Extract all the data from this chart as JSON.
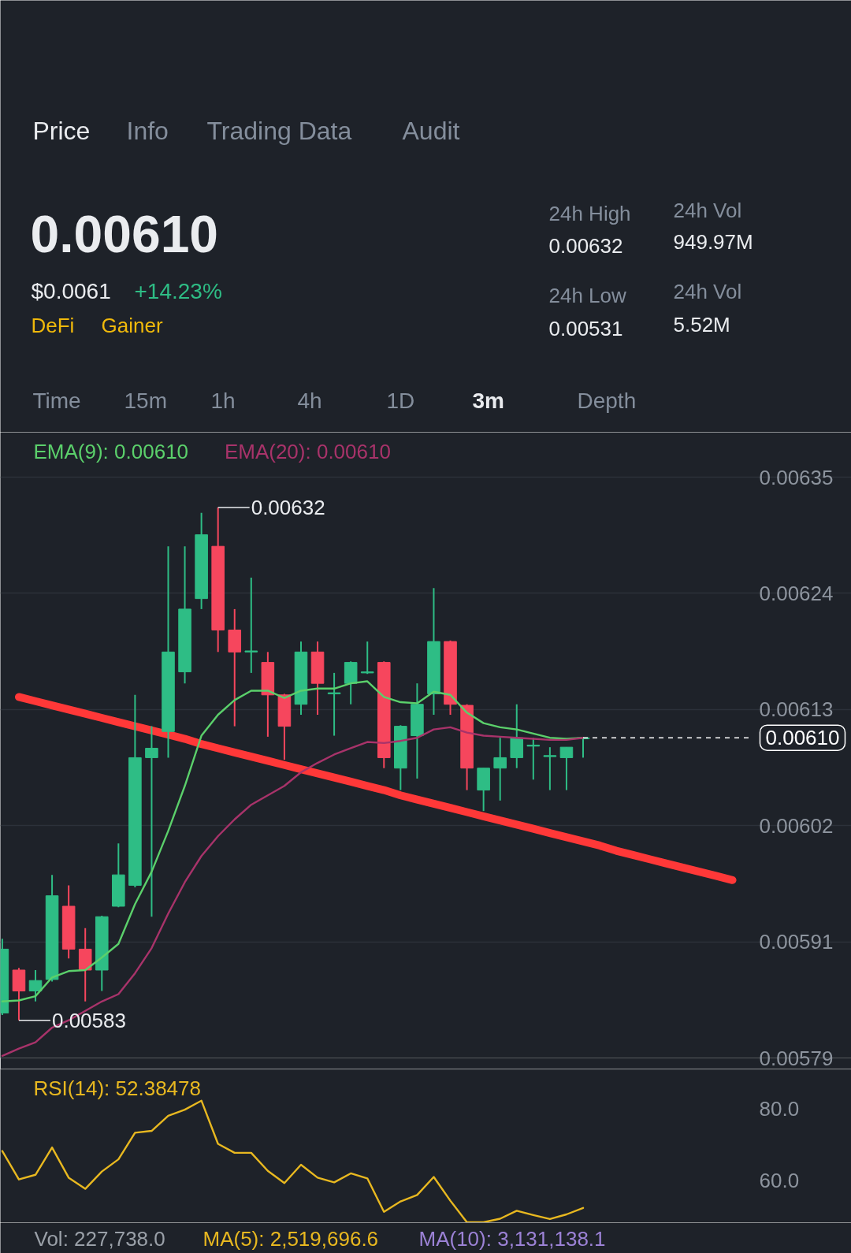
{
  "chart_data": [
    {
      "type": "other",
      "annotations": [
        "Price",
        "Info",
        "Trading Data",
        "Audit",
        "0.00610",
        "$0.0061",
        "+14.23%",
        "DeFi",
        "Gainer",
        "24h High",
        "0.00632",
        "24h Low",
        "0.00531",
        "24h Vol",
        "949.97M",
        "24h Vol",
        "5.52M",
        "Time",
        "15m",
        "1h",
        "4h",
        "1D",
        "3m",
        "Depth"
      ]
    },
    {
      "type": "candlestick",
      "categories": [
        null,
        null,
        null,
        null,
        null,
        null,
        null,
        null,
        null,
        null,
        null,
        null,
        null,
        null,
        null,
        null,
        null,
        null,
        null,
        null,
        null,
        null,
        null,
        null,
        null,
        null,
        null,
        null,
        null,
        null,
        null,
        null,
        null,
        null,
        null,
        null,
        null,
        null,
        null,
        null,
        null,
        null,
        null,
        null,
        null
      ],
      "ohlc": [
        [
          0.005837,
          0.005908,
          0.005835,
          0.005898
        ],
        [
          0.005878,
          0.00588,
          0.00583,
          0.005858
        ],
        [
          0.005858,
          0.005878,
          0.005848,
          0.005868
        ],
        [
          0.005869,
          0.005969,
          0.005867,
          0.005949
        ],
        [
          0.005939,
          0.005959,
          0.005889,
          0.005898
        ],
        [
          0.005898,
          0.005918,
          0.005848,
          0.005878
        ],
        [
          0.005878,
          0.00593,
          0.005858,
          0.005929
        ],
        [
          0.005939,
          0.005999,
          0.005938,
          0.005969
        ],
        [
          0.005959,
          0.006141,
          0.005957,
          0.006081
        ],
        [
          0.006081,
          0.006111,
          0.005929,
          0.00609
        ],
        [
          0.006106,
          0.006283,
          0.006081,
          0.006182
        ],
        [
          0.006163,
          0.006283,
          0.006152,
          0.006223
        ],
        [
          0.006233,
          0.006315,
          0.006223,
          0.006294
        ],
        [
          0.006283,
          0.00632,
          0.006182,
          0.006203
        ],
        [
          0.006203,
          0.006223,
          0.006111,
          0.006182
        ],
        [
          0.006182,
          0.006253,
          0.006162,
          0.006183
        ],
        [
          0.006172,
          0.006182,
          0.006101,
          0.006141
        ],
        [
          0.006141,
          0.006142,
          0.006079,
          0.006111
        ],
        [
          0.006132,
          0.006192,
          0.006122,
          0.006182
        ],
        [
          0.006182,
          0.006192,
          0.006122,
          0.006152
        ],
        [
          0.006142,
          0.006162,
          0.006102,
          0.006143
        ],
        [
          0.006152,
          0.006173,
          0.006132,
          0.006172
        ],
        [
          0.006162,
          0.006192,
          0.006161,
          0.006163
        ],
        [
          0.006172,
          0.006173,
          0.006071,
          0.006081
        ],
        [
          0.006071,
          0.006112,
          0.00605,
          0.006111
        ],
        [
          0.006102,
          0.006152,
          0.006061,
          0.006132
        ],
        [
          0.006142,
          0.006243,
          0.006122,
          0.006192
        ],
        [
          0.006192,
          0.006193,
          0.006122,
          0.006132
        ],
        [
          0.006131,
          0.006132,
          0.00605,
          0.006071
        ],
        [
          0.00605,
          0.006071,
          0.00603,
          0.006071
        ],
        [
          0.006071,
          0.0061,
          0.00604,
          0.006081
        ],
        [
          0.006081,
          0.006132,
          0.006071,
          0.0061
        ],
        [
          0.006092,
          0.0061,
          0.00606,
          0.006093
        ],
        [
          0.006082,
          0.006091,
          0.00605,
          0.006083
        ],
        [
          0.006081,
          0.006091,
          0.00605,
          0.006091
        ],
        [
          0.006099,
          0.0061,
          0.006081,
          0.0061
        ],
        null,
        null,
        null,
        null,
        null,
        null,
        null,
        null,
        null
      ],
      "colors": [
        "#2ebd85",
        "#f6465d",
        "#2ebd85",
        "#2ebd85",
        "#f6465d",
        "#f6465d",
        "#2ebd85",
        "#2ebd85",
        "#2ebd85",
        "#2ebd85",
        "#2ebd85",
        "#2ebd85",
        "#2ebd85",
        "#f6465d",
        "#f6465d",
        "#2ebd85",
        "#f6465d",
        "#f6465d",
        "#2ebd85",
        "#f6465d",
        "#2ebd85",
        "#2ebd85",
        "#2ebd85",
        "#f6465d",
        "#2ebd85",
        "#2ebd85",
        "#2ebd85",
        "#f6465d",
        "#f6465d",
        "#2ebd85",
        "#2ebd85",
        "#2ebd85",
        "#2ebd85",
        "#2ebd85",
        "#2ebd85",
        "#2ebd85",
        null,
        null,
        null,
        null,
        null,
        null,
        null,
        null,
        null
      ],
      "series": [
        {
          "name": "EMA(9): 0.00610",
          "type": "line",
          "color": "#5bd06b",
          "values": [
            0.005848,
            0.005849,
            0.005853,
            0.005871,
            0.005877,
            0.005878,
            0.00589,
            0.005903,
            0.005941,
            0.005972,
            0.006011,
            0.006054,
            0.006102,
            0.006122,
            0.006136,
            0.006145,
            0.006145,
            0.006138,
            0.006145,
            0.006147,
            0.006147,
            0.006152,
            0.006154,
            0.006139,
            0.006134,
            0.006133,
            0.006144,
            0.006141,
            0.006124,
            0.006114,
            0.00611,
            0.006108,
            0.006104,
            0.0061,
            0.006099,
            0.0061,
            null,
            null,
            null,
            null,
            null,
            null,
            null,
            null,
            null
          ]
        },
        {
          "name": "EMA(20): 0.00610",
          "type": "line",
          "color": "#a8336a",
          "values": [
            0.005796,
            0.005803,
            0.005809,
            0.005823,
            0.00583,
            0.005839,
            0.005848,
            0.005855,
            0.005875,
            0.005899,
            0.005932,
            0.005962,
            0.005987,
            0.006006,
            0.006022,
            0.006036,
            0.006045,
            0.006054,
            0.006067,
            0.006076,
            0.006084,
            0.00609,
            0.006096,
            0.006095,
            0.006097,
            0.0061,
            0.006108,
            0.00611,
            0.006105,
            0.006102,
            0.006101,
            0.0061,
            0.006099,
            0.006098,
            0.006098,
            0.0061,
            null,
            null,
            null,
            null,
            null,
            null,
            null,
            null,
            null
          ]
        },
        {
          "type": "line",
          "color": "#ff3838",
          "values": [
            null,
            0.006139,
            0.006135,
            0.006131,
            0.006127,
            0.006123,
            0.006119,
            0.006115,
            0.006111,
            0.006107,
            0.006103,
            0.006099,
            0.006094,
            0.00609,
            0.006086,
            0.006082,
            0.006078,
            0.006074,
            0.00607,
            0.006066,
            0.006062,
            0.006058,
            0.006054,
            0.00605,
            0.006045,
            0.006041,
            0.006037,
            0.006033,
            0.006029,
            0.006025,
            0.006021,
            0.006017,
            0.006013,
            0.006009,
            0.006005,
            0.006001,
            0.005997,
            0.005992,
            0.005988,
            0.005984,
            0.00598,
            0.005976,
            0.005972,
            0.005968,
            0.005964
          ]
        }
      ],
      "ylim": [
        0.005794,
        0.006392
      ],
      "yticks": [
        {
          "value": 0.006349,
          "label": "0.00635"
        },
        {
          "value": 0.006238,
          "label": "0.00624"
        },
        {
          "value": 0.006127,
          "label": "0.00613"
        },
        {
          "value": 0.006016,
          "label": "0.00602"
        },
        {
          "value": 0.005905,
          "label": "0.00591"
        },
        {
          "value": 0.005794,
          "label": "0.00579"
        }
      ],
      "ref_lines": [
        {
          "axis": "y",
          "value": 0.0061,
          "label": "0.00610",
          "line_style": "dashed",
          "color": "#ffffff"
        }
      ],
      "annotations": [
        "0.00632",
        "0.00583"
      ],
      "grid": "y",
      "tick_labels": "y"
    },
    {
      "type": "line",
      "categories": [
        null,
        null,
        null,
        null,
        null,
        null,
        null,
        null,
        null,
        null,
        null,
        null,
        null,
        null,
        null,
        null,
        null,
        null,
        null,
        null,
        null,
        null,
        null,
        null,
        null,
        null,
        null,
        null,
        null,
        null,
        null,
        null,
        null,
        null,
        null,
        null,
        null,
        null,
        null,
        null,
        null,
        null,
        null,
        null,
        null
      ],
      "series": [
        {
          "name": "RSI(14): 52.38478",
          "color": "#e8b820",
          "values": [
            68.2,
            60.3,
            61.6,
            69.2,
            60.8,
            57.7,
            62.5,
            65.9,
            73.3,
            73.8,
            78.0,
            79.7,
            82.2,
            70.2,
            67.7,
            67.7,
            62.7,
            59.3,
            64.4,
            60.8,
            59.5,
            62.0,
            60.6,
            51.3,
            54.2,
            56.0,
            61.0,
            54.4,
            48.4,
            48.4,
            49.4,
            51.6,
            50.4,
            49.3,
            50.6,
            52.4,
            null,
            null,
            null,
            null,
            null,
            null,
            null,
            null,
            null
          ]
        }
      ],
      "ylim": [
        48.3,
        91.0
      ],
      "yticks": [
        {
          "value": 80,
          "label": "80.0"
        },
        {
          "value": 60,
          "label": "60.0"
        }
      ],
      "tick_labels": "y"
    },
    {
      "type": "other",
      "annotations": [
        "Vol: 227,738.0",
        "MA(5): 2,519,696.6",
        "MA(10): 3,131,138.1"
      ]
    }
  ]
}
